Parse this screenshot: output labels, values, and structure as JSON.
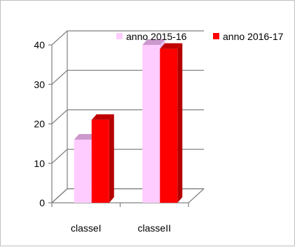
{
  "chart_data": {
    "type": "bar",
    "style": "3d-clustered-column",
    "categories": [
      "classeI",
      "classeII"
    ],
    "series": [
      {
        "name": "anno 2015-16",
        "values": [
          16,
          40
        ],
        "color": "#ffccff",
        "side_color": "#e8b8ee",
        "top_color": "#cc99cc"
      },
      {
        "name": "anno 2016-17",
        "values": [
          21,
          39
        ],
        "color": "#ff0000",
        "side_color": "#b40000",
        "top_color": "#c00000"
      }
    ],
    "yticks": [
      0,
      10,
      20,
      30,
      40
    ],
    "ylim": [
      0,
      40
    ],
    "grid": true,
    "legend_position": "top-right"
  }
}
